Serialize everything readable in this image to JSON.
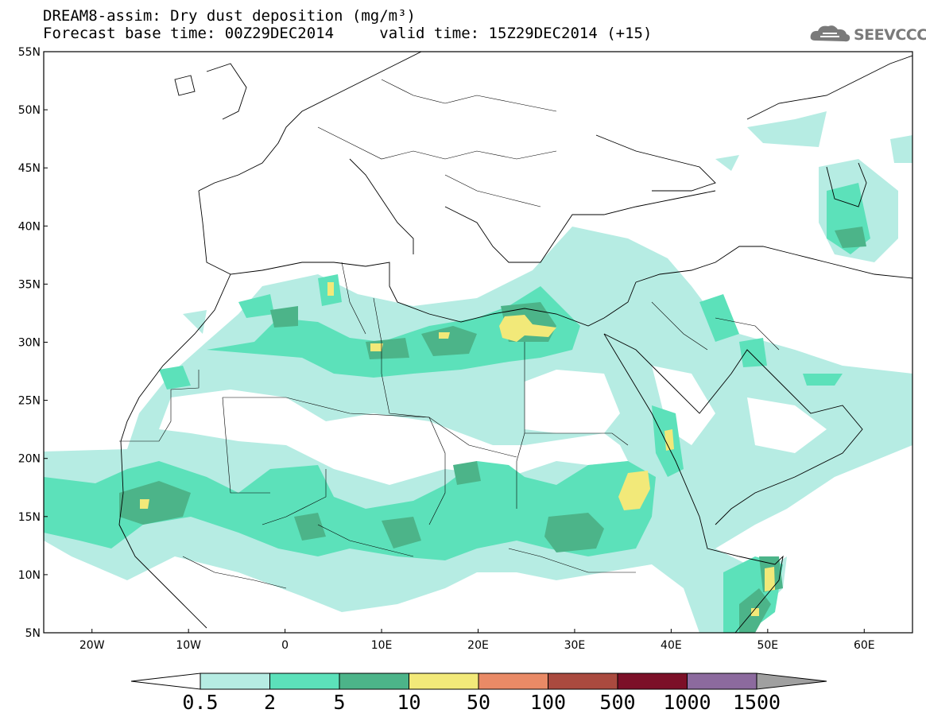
{
  "title": {
    "line1": "DREAM8-assim: Dry dust deposition (mg/m³)",
    "line2_left": "Forecast base time: 00Z29DEC2014",
    "line2_right": "valid time: 15Z29DEC2014 (+15)"
  },
  "logo": {
    "text": "SEEVCCC",
    "icon": "cloud-logo-icon"
  },
  "axes": {
    "lat_labels": [
      "55N",
      "50N",
      "45N",
      "40N",
      "35N",
      "30N",
      "25N",
      "20N",
      "15N",
      "10N",
      "5N"
    ],
    "lon_labels": [
      "20W",
      "10W",
      "0",
      "10E",
      "20E",
      "30E",
      "40E",
      "50E",
      "60E"
    ],
    "lat_range": [
      5,
      55
    ],
    "lon_range": [
      -25,
      65
    ]
  },
  "colorbar": {
    "levels": [
      "0.5",
      "2",
      "5",
      "10",
      "50",
      "100",
      "500",
      "1000",
      "1500"
    ],
    "colors": [
      "#b6ece3",
      "#5ce1ba",
      "#4cb489",
      "#f2e979",
      "#e98a66",
      "#aa4a3f",
      "#7c1028",
      "#8c6a9e",
      "#a0a0a0"
    ],
    "extend_low_color": "#ffffff",
    "extend_high_color": "#a0a0a0"
  },
  "legend_colors": {
    "light": "#b6ece3",
    "mid": "#5ce1ba",
    "dark": "#4cb489",
    "yellow": "#f2e979"
  }
}
